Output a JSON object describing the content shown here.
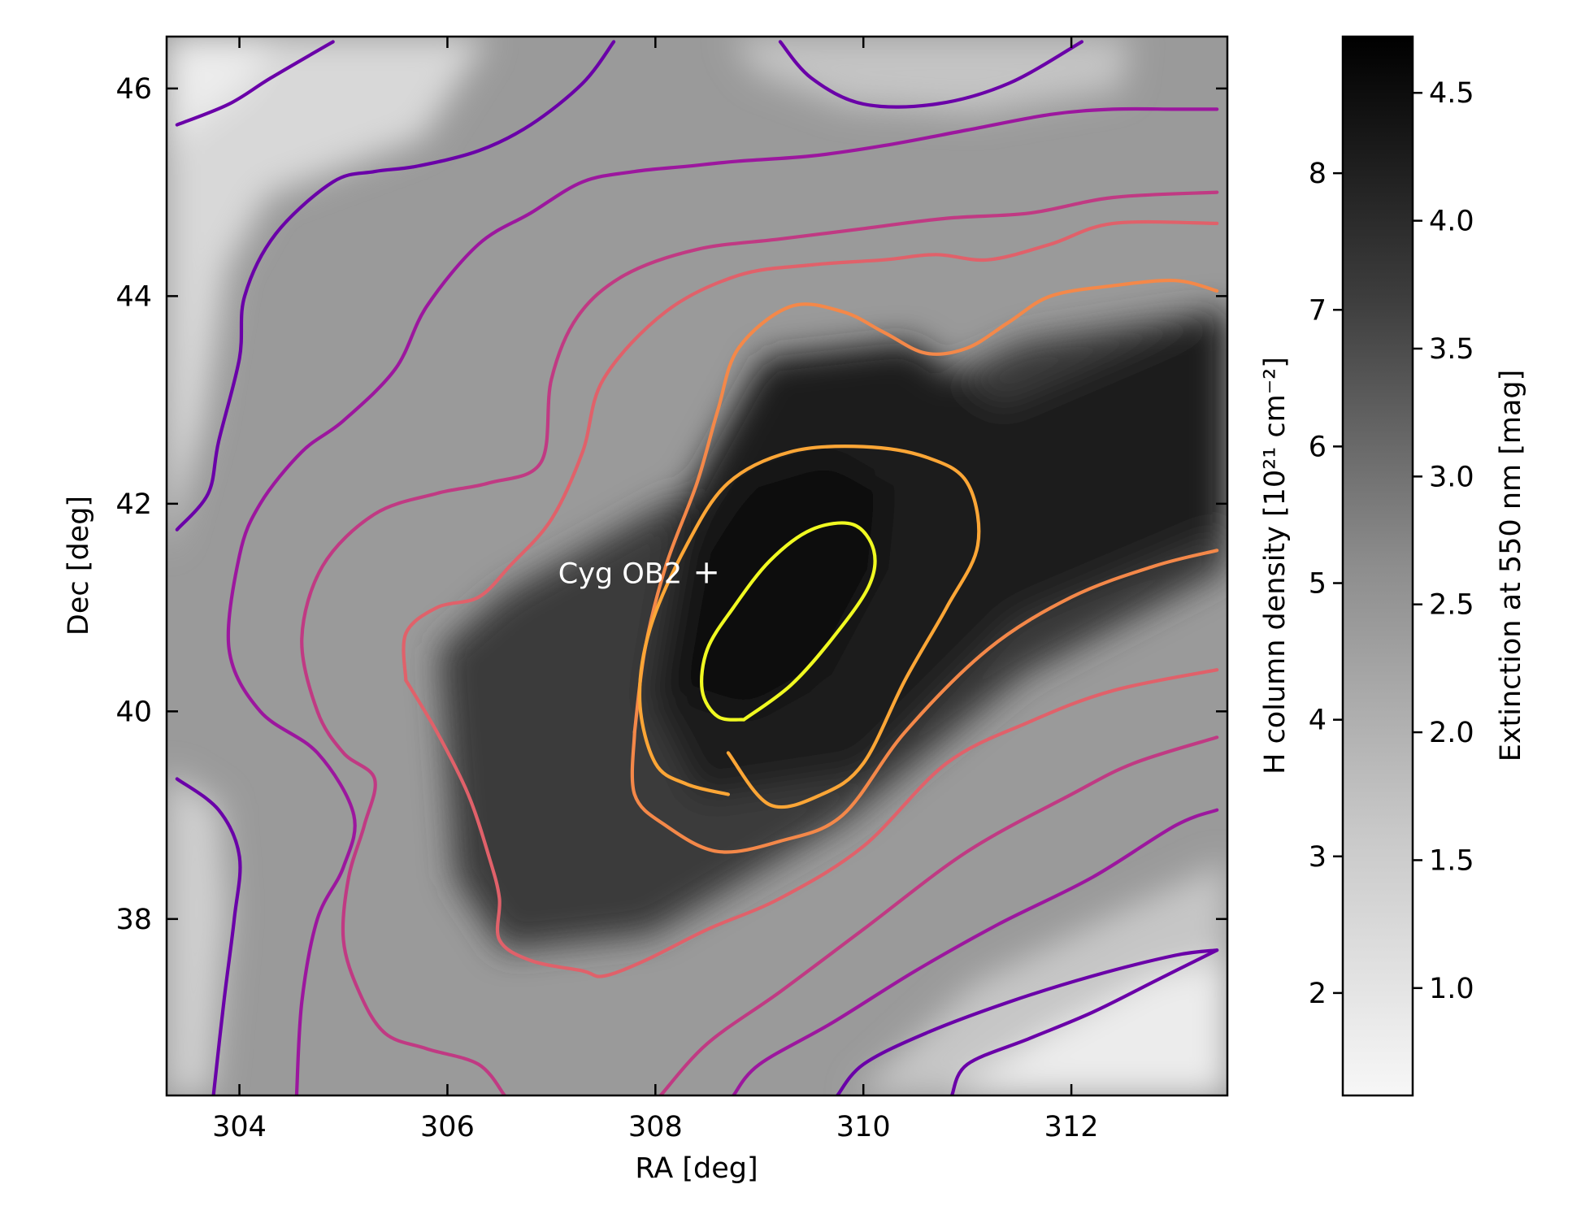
{
  "chart_data": {
    "type": "heatmap",
    "xlabel": "RA [deg]",
    "ylabel": "Dec [deg]",
    "xlim": [
      303.3,
      313.5
    ],
    "ylim": [
      36.3,
      46.5
    ],
    "x_ticks": [
      304,
      306,
      308,
      310,
      312
    ],
    "y_ticks": [
      38,
      40,
      42,
      44,
      46
    ],
    "colormap": "greys",
    "colorbar": {
      "label_left": "H column density [10²¹ cm⁻²]",
      "label_right": "Extinction at 550 nm [mag]",
      "left_range": [
        1.25,
        9.0
      ],
      "left_ticks": [
        2,
        3,
        4,
        5,
        6,
        7,
        8
      ],
      "right_range": [
        0.58,
        4.72
      ],
      "right_ticks": [
        "1.0",
        "1.5",
        "2.0",
        "2.5",
        "3.0",
        "3.5",
        "4.0",
        "4.5"
      ]
    },
    "field_peak": {
      "ra": 309.2,
      "dec": 40.8,
      "value": 8.8
    },
    "contour_colors": [
      "#6a00a8",
      "#9c179e",
      "#c03a83",
      "#e0616a",
      "#f48849",
      "#fca636",
      "#fcce25",
      "#f0f921"
    ],
    "contours": [
      {
        "color": "#6a00a8",
        "points": [
          [
            303.4,
            45.65
          ],
          [
            303.9,
            45.85
          ],
          [
            304.3,
            46.1
          ],
          [
            304.9,
            46.45
          ]
        ]
      },
      {
        "color": "#6a00a8",
        "points": [
          [
            303.4,
            41.75
          ],
          [
            303.7,
            42.1
          ],
          [
            303.8,
            42.6
          ],
          [
            304.0,
            43.4
          ],
          [
            304.05,
            44.0
          ],
          [
            304.35,
            44.6
          ],
          [
            304.9,
            45.1
          ],
          [
            305.3,
            45.2
          ],
          [
            305.7,
            45.25
          ],
          [
            306.3,
            45.4
          ],
          [
            306.8,
            45.65
          ],
          [
            307.3,
            46.05
          ],
          [
            307.6,
            46.45
          ]
        ]
      },
      {
        "color": "#6a00a8",
        "points": [
          [
            303.4,
            39.35
          ],
          [
            303.8,
            39.05
          ],
          [
            304.0,
            38.6
          ],
          [
            303.95,
            38.0
          ],
          [
            303.85,
            37.2
          ],
          [
            303.75,
            36.3
          ]
        ]
      },
      {
        "color": "#6a00a8",
        "points": [
          [
            309.2,
            46.45
          ],
          [
            309.5,
            46.1
          ],
          [
            310.0,
            45.85
          ],
          [
            310.7,
            45.85
          ],
          [
            311.4,
            46.05
          ],
          [
            312.1,
            46.45
          ]
        ]
      },
      {
        "color": "#9c179e",
        "points": [
          [
            304.55,
            36.3
          ],
          [
            304.6,
            37.2
          ],
          [
            304.75,
            38.0
          ],
          [
            305.0,
            38.5
          ],
          [
            305.1,
            39.0
          ],
          [
            304.75,
            39.6
          ],
          [
            304.2,
            40.0
          ],
          [
            303.9,
            40.6
          ],
          [
            304.0,
            41.5
          ],
          [
            304.2,
            42.0
          ],
          [
            304.6,
            42.5
          ],
          [
            305.0,
            42.8
          ],
          [
            305.5,
            43.3
          ],
          [
            305.8,
            43.9
          ],
          [
            306.3,
            44.5
          ],
          [
            306.8,
            44.8
          ],
          [
            307.3,
            45.1
          ],
          [
            307.8,
            45.2
          ],
          [
            308.3,
            45.25
          ],
          [
            308.8,
            45.3
          ],
          [
            309.5,
            45.35
          ],
          [
            310.2,
            45.45
          ],
          [
            311.0,
            45.6
          ],
          [
            311.8,
            45.75
          ],
          [
            312.4,
            45.8
          ],
          [
            313.0,
            45.8
          ],
          [
            313.4,
            45.8
          ]
        ]
      },
      {
        "color": "#c03a83",
        "points": [
          [
            306.55,
            36.3
          ],
          [
            306.3,
            36.6
          ],
          [
            305.8,
            36.75
          ],
          [
            305.4,
            36.9
          ],
          [
            305.15,
            37.3
          ],
          [
            305.0,
            37.8
          ],
          [
            305.05,
            38.4
          ],
          [
            305.2,
            38.9
          ],
          [
            305.3,
            39.35
          ],
          [
            305.0,
            39.6
          ],
          [
            304.75,
            40.0
          ],
          [
            304.6,
            40.7
          ],
          [
            304.8,
            41.4
          ],
          [
            305.3,
            41.9
          ],
          [
            305.9,
            42.1
          ],
          [
            306.4,
            42.2
          ],
          [
            306.9,
            42.4
          ],
          [
            307.0,
            43.2
          ],
          [
            307.25,
            43.8
          ],
          [
            307.7,
            44.2
          ],
          [
            308.4,
            44.45
          ],
          [
            309.2,
            44.55
          ],
          [
            310.0,
            44.65
          ],
          [
            310.8,
            44.75
          ],
          [
            311.6,
            44.8
          ],
          [
            312.4,
            44.95
          ],
          [
            313.4,
            45.0
          ]
        ]
      },
      {
        "color": "#e0616a",
        "points": [
          [
            305.6,
            40.3
          ],
          [
            305.9,
            39.8
          ],
          [
            306.2,
            39.2
          ],
          [
            306.4,
            38.6
          ],
          [
            306.5,
            38.2
          ],
          [
            306.5,
            37.8
          ],
          [
            306.8,
            37.6
          ],
          [
            307.3,
            37.5
          ],
          [
            307.5,
            37.45
          ],
          [
            307.9,
            37.6
          ],
          [
            308.5,
            37.9
          ],
          [
            309.2,
            38.2
          ],
          [
            310.0,
            38.7
          ],
          [
            310.8,
            39.5
          ],
          [
            311.6,
            39.9
          ],
          [
            312.4,
            40.2
          ],
          [
            313.4,
            40.4
          ]
        ]
      },
      {
        "color": "#e0616a",
        "points": [
          [
            305.6,
            40.3
          ],
          [
            305.6,
            40.75
          ],
          [
            305.9,
            41.0
          ],
          [
            306.3,
            41.1
          ],
          [
            306.6,
            41.4
          ],
          [
            307.0,
            41.85
          ],
          [
            307.3,
            42.5
          ],
          [
            307.5,
            43.2
          ],
          [
            308.1,
            43.85
          ],
          [
            308.8,
            44.2
          ],
          [
            309.5,
            44.3
          ],
          [
            310.2,
            44.35
          ],
          [
            310.7,
            44.4
          ],
          [
            311.2,
            44.35
          ],
          [
            311.8,
            44.5
          ],
          [
            312.4,
            44.7
          ],
          [
            313.4,
            44.7
          ]
        ]
      },
      {
        "color": "#c03a83",
        "points": [
          [
            308.05,
            36.3
          ],
          [
            308.5,
            36.8
          ],
          [
            309.2,
            37.3
          ],
          [
            310.0,
            37.9
          ],
          [
            311.0,
            38.65
          ],
          [
            312.0,
            39.2
          ],
          [
            312.6,
            39.5
          ],
          [
            313.4,
            39.75
          ]
        ]
      },
      {
        "color": "#9c179e",
        "points": [
          [
            308.75,
            36.3
          ],
          [
            309.0,
            36.6
          ],
          [
            309.7,
            37.0
          ],
          [
            310.5,
            37.5
          ],
          [
            311.3,
            37.95
          ],
          [
            312.2,
            38.4
          ],
          [
            313.0,
            38.9
          ],
          [
            313.4,
            39.05
          ]
        ]
      },
      {
        "color": "#6a00a8",
        "points": [
          [
            309.75,
            36.3
          ],
          [
            310.0,
            36.6
          ],
          [
            310.6,
            36.9
          ],
          [
            311.4,
            37.2
          ],
          [
            312.2,
            37.45
          ],
          [
            313.0,
            37.65
          ],
          [
            313.4,
            37.7
          ]
        ]
      },
      {
        "color": "#6a00a8",
        "points": [
          [
            310.85,
            36.3
          ],
          [
            311.0,
            36.6
          ],
          [
            311.6,
            36.85
          ],
          [
            312.2,
            37.1
          ],
          [
            312.8,
            37.4
          ],
          [
            313.4,
            37.7
          ]
        ]
      },
      {
        "color": "#f48849",
        "points": [
          [
            307.8,
            39.8
          ],
          [
            307.8,
            39.2
          ],
          [
            308.1,
            38.9
          ],
          [
            308.6,
            38.65
          ],
          [
            309.2,
            38.75
          ],
          [
            309.8,
            39.0
          ],
          [
            310.4,
            39.8
          ],
          [
            311.2,
            40.6
          ],
          [
            312.0,
            41.1
          ],
          [
            312.8,
            41.4
          ],
          [
            313.4,
            41.55
          ]
        ]
      },
      {
        "color": "#f48849",
        "points": [
          [
            307.8,
            39.8
          ],
          [
            307.9,
            40.6
          ],
          [
            308.1,
            41.4
          ],
          [
            308.4,
            42.2
          ],
          [
            308.6,
            42.9
          ],
          [
            308.8,
            43.5
          ],
          [
            309.3,
            43.9
          ],
          [
            309.8,
            43.85
          ],
          [
            310.2,
            43.65
          ],
          [
            310.6,
            43.45
          ],
          [
            311.0,
            43.5
          ],
          [
            311.4,
            43.75
          ],
          [
            311.8,
            44.0
          ],
          [
            312.4,
            44.1
          ],
          [
            313.0,
            44.15
          ],
          [
            313.4,
            44.05
          ]
        ]
      },
      {
        "color": "#fca636",
        "points": [
          [
            308.7,
            39.6
          ],
          [
            309.1,
            39.1
          ],
          [
            309.6,
            39.2
          ],
          [
            310.0,
            39.5
          ],
          [
            310.4,
            40.3
          ],
          [
            310.8,
            41.0
          ],
          [
            311.1,
            41.6
          ],
          [
            311.0,
            42.2
          ],
          [
            310.6,
            42.45
          ],
          [
            310.0,
            42.55
          ],
          [
            309.3,
            42.5
          ],
          [
            308.7,
            42.2
          ],
          [
            308.3,
            41.6
          ],
          [
            307.95,
            40.8
          ],
          [
            307.85,
            40.1
          ],
          [
            308.0,
            39.5
          ],
          [
            308.3,
            39.3
          ],
          [
            308.7,
            39.2
          ]
        ]
      },
      {
        "color": "#f0f921",
        "points": [
          [
            308.85,
            39.92
          ],
          [
            309.3,
            40.25
          ],
          [
            309.7,
            40.7
          ],
          [
            310.05,
            41.2
          ],
          [
            310.1,
            41.55
          ],
          [
            309.9,
            41.8
          ],
          [
            309.5,
            41.75
          ],
          [
            309.1,
            41.45
          ],
          [
            308.75,
            41.0
          ],
          [
            308.5,
            40.6
          ],
          [
            308.45,
            40.2
          ],
          [
            308.6,
            39.95
          ],
          [
            308.85,
            39.92
          ]
        ]
      }
    ],
    "annotation": {
      "text": "Cyg OB2",
      "ra": 308.35,
      "dec": 41.33,
      "marker": "+"
    }
  }
}
